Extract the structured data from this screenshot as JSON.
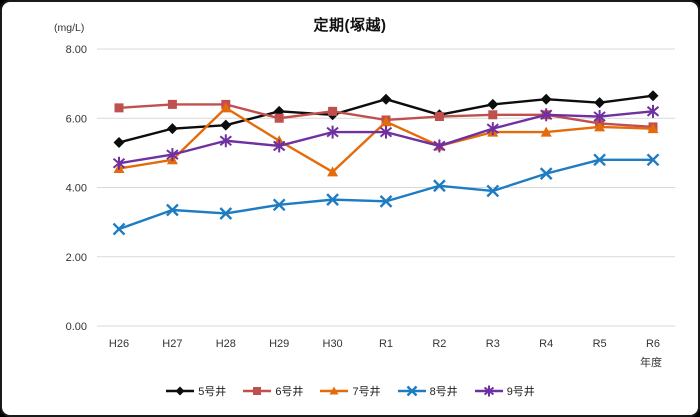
{
  "chart": {
    "title": "定期(塚越)",
    "unit_label": "(mg/L)",
    "xaxis_title": "年度"
  },
  "chart_data": {
    "type": "line",
    "title": "定期(塚越)",
    "ylabel": "(mg/L)",
    "xlabel": "年度",
    "categories": [
      "H26",
      "H27",
      "H28",
      "H29",
      "H30",
      "R1",
      "R2",
      "R3",
      "R4",
      "R5",
      "R6"
    ],
    "series": [
      {
        "name": "5号井",
        "color": "#0D0D0D",
        "marker": "diamond",
        "values": [
          5.3,
          5.7,
          5.8,
          6.2,
          6.1,
          6.55,
          6.1,
          6.4,
          6.55,
          6.45,
          6.65
        ]
      },
      {
        "name": "6号井",
        "color": "#C0504D",
        "marker": "square",
        "values": [
          6.3,
          6.4,
          6.4,
          6.0,
          6.2,
          5.95,
          6.05,
          6.1,
          6.1,
          5.85,
          5.75
        ]
      },
      {
        "name": "7号井",
        "color": "#E56B0A",
        "marker": "triangle",
        "values": [
          4.55,
          4.8,
          6.3,
          5.35,
          4.45,
          5.9,
          5.2,
          5.6,
          5.6,
          5.75,
          5.7
        ]
      },
      {
        "name": "8号井",
        "color": "#1E7CC3",
        "marker": "x",
        "values": [
          2.8,
          3.35,
          3.25,
          3.5,
          3.65,
          3.6,
          4.05,
          3.9,
          4.4,
          4.8,
          4.8
        ]
      },
      {
        "name": "9号井",
        "color": "#7030A0",
        "marker": "star",
        "values": [
          4.7,
          4.95,
          5.35,
          5.2,
          5.6,
          5.6,
          5.2,
          5.7,
          6.1,
          6.05,
          6.2
        ]
      }
    ],
    "ylim": [
      0,
      8
    ],
    "yticks": [
      0,
      2,
      4,
      6,
      8
    ],
    "ytick_labels": [
      "0.00",
      "2.00",
      "4.00",
      "6.00",
      "8.00"
    ],
    "grid": "horizontal",
    "gridline_color": "#D9D9D9",
    "legend_position": "bottom"
  }
}
